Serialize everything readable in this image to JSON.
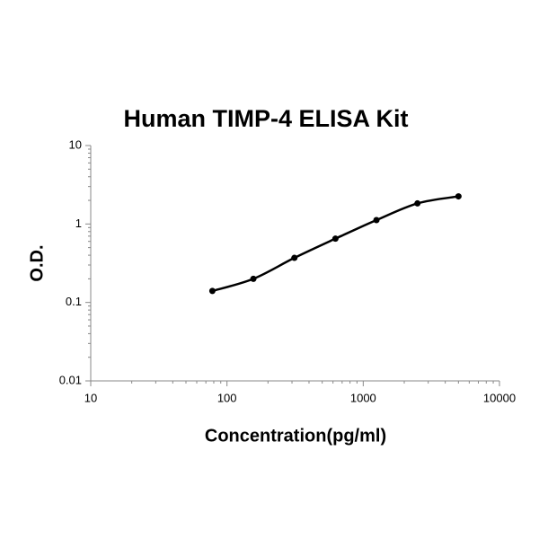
{
  "chart_data": {
    "type": "line",
    "title": "Human TIMP-4 ELISA Kit",
    "x_label": "Concentration(pg/ml)",
    "y_label": "O.D.",
    "x": [
      78.125,
      156.25,
      312.5,
      625,
      1250,
      2500,
      5000
    ],
    "series": [
      {
        "color": "#000000",
        "values": [
          0.14,
          0.2,
          0.37,
          0.65,
          1.12,
          1.83,
          2.25
        ]
      }
    ],
    "xlim": [
      10,
      10000
    ],
    "ylim": [
      0.01,
      10
    ],
    "xticks": [
      10,
      100,
      1000,
      10000
    ],
    "yticks": [
      0.01,
      0.1,
      1,
      10
    ],
    "log_x": true,
    "log_y": true,
    "markers": true,
    "smooth": true
  }
}
